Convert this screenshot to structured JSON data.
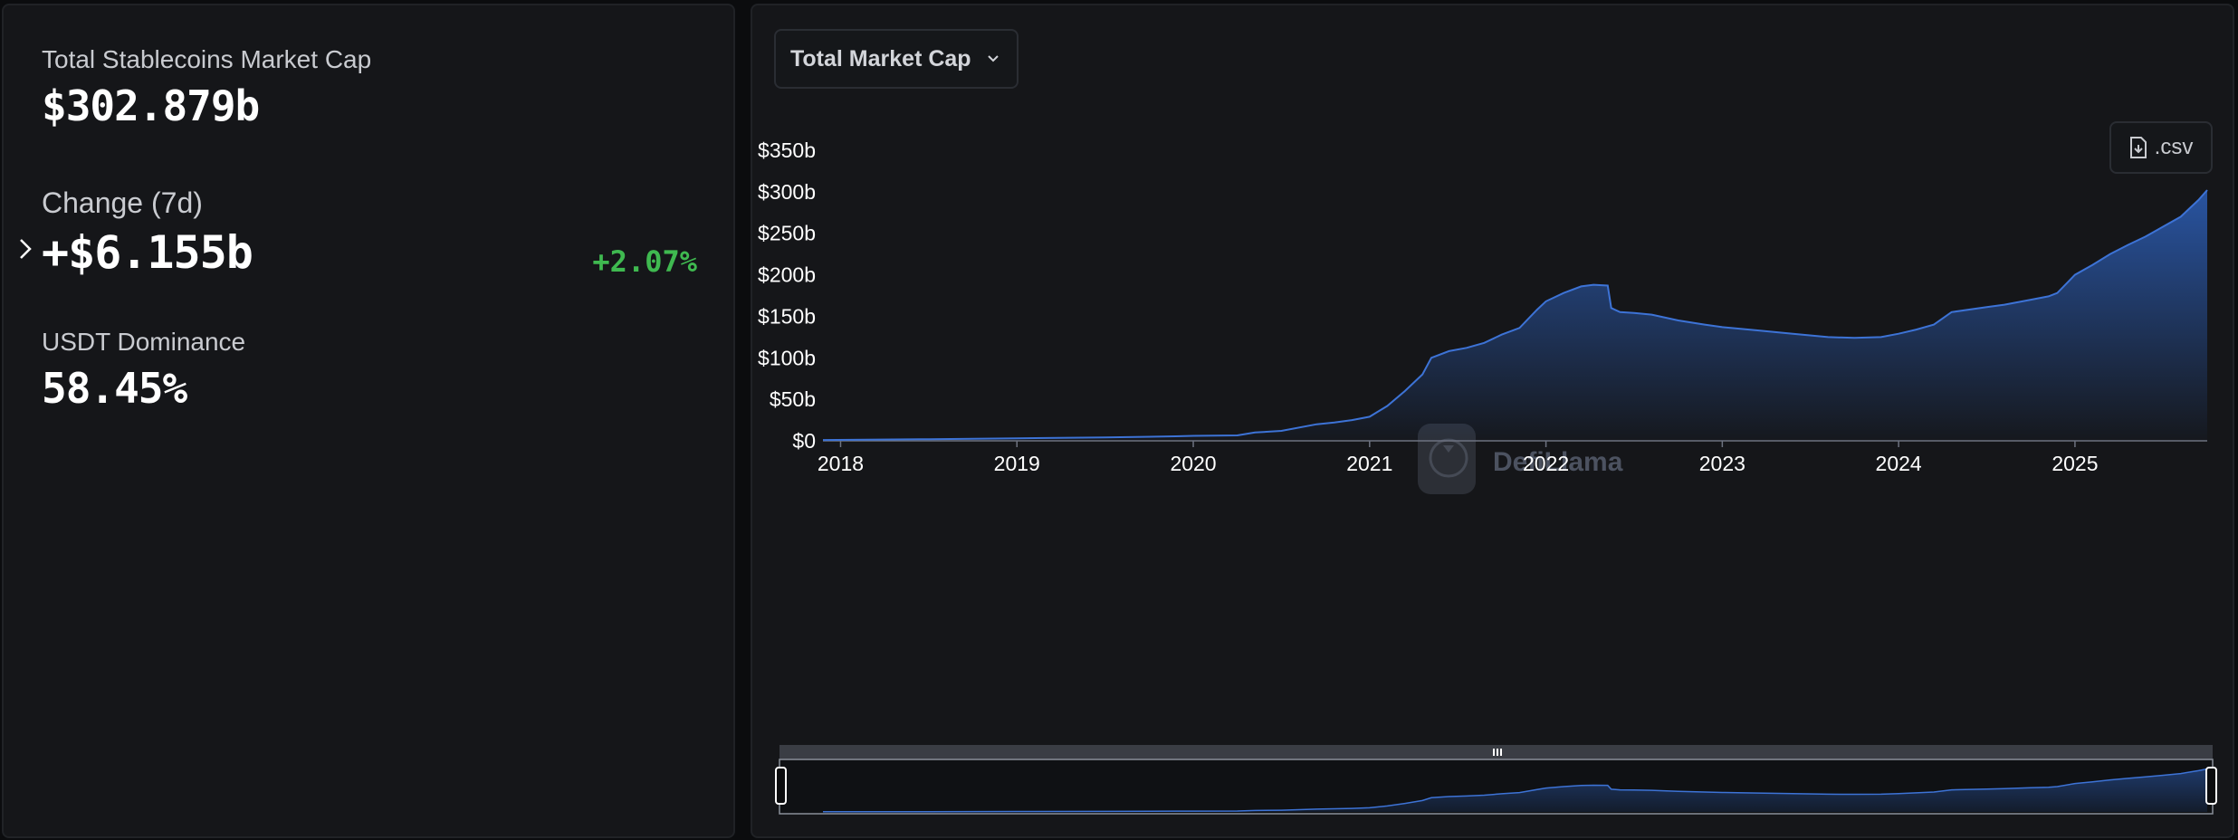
{
  "stats": {
    "total": {
      "label": "Total Stablecoins Market Cap",
      "value": "$302.879b"
    },
    "change": {
      "label": "Change (7d)",
      "value": "+$6.155b",
      "percent": "+2.07%"
    },
    "dominance": {
      "label": "USDT Dominance",
      "value": "58.45%"
    }
  },
  "toolbar": {
    "metric_label": "Total Market Cap",
    "csv_label": ".csv"
  },
  "watermark": "DefiLlama",
  "colors": {
    "accent": "#3d73d6",
    "positive": "#3fb950",
    "panel": "#151619"
  },
  "chart_data": {
    "type": "area",
    "title": "",
    "xlabel": "",
    "ylabel": "",
    "y_ticks": [
      "$0",
      "$50b",
      "$100b",
      "$150b",
      "$200b",
      "$250b",
      "$300b",
      "$350b"
    ],
    "y_tick_values": [
      0,
      50,
      100,
      150,
      200,
      250,
      300,
      350
    ],
    "x_ticks": [
      "2018",
      "2019",
      "2020",
      "2021",
      "2022",
      "2023",
      "2024",
      "2025"
    ],
    "x_tick_values": [
      2018,
      2019,
      2020,
      2021,
      2022,
      2023,
      2024,
      2025
    ],
    "xlim": [
      2017.9,
      2025.75
    ],
    "ylim": [
      0,
      350
    ],
    "grid": false,
    "legend": "none",
    "series": [
      {
        "x": [
          2017.9,
          2018.5,
          2019.0,
          2019.5,
          2019.9,
          2020.0,
          2020.25,
          2020.35,
          2020.5,
          2020.7,
          2020.8,
          2020.9,
          2021.0,
          2021.1,
          2021.2,
          2021.3,
          2021.35,
          2021.45,
          2021.55,
          2021.65,
          2021.75,
          2021.85,
          2021.95,
          2022.0,
          2022.1,
          2022.2,
          2022.27,
          2022.35,
          2022.37,
          2022.42,
          2022.5,
          2022.6,
          2022.75,
          2022.9,
          2023.0,
          2023.2,
          2023.4,
          2023.6,
          2023.75,
          2023.9,
          2024.0,
          2024.1,
          2024.2,
          2024.3,
          2024.5,
          2024.6,
          2024.75,
          2024.85,
          2024.9,
          2025.0,
          2025.1,
          2025.2,
          2025.3,
          2025.4,
          2025.5,
          2025.6,
          2025.7,
          2025.75
        ],
        "y": [
          1,
          2,
          3,
          4,
          5.5,
          6,
          6.5,
          10,
          12,
          20,
          22,
          25,
          29,
          42,
          60,
          80,
          100,
          108,
          112,
          118,
          128,
          136,
          158,
          168,
          178,
          186,
          188,
          187,
          160,
          155,
          154,
          152,
          145,
          140,
          137,
          133,
          129,
          125,
          124,
          125,
          129,
          134,
          140,
          155,
          161,
          164,
          170,
          174,
          178,
          200,
          212,
          225,
          236,
          246,
          258,
          270,
          290,
          302
        ]
      }
    ]
  }
}
